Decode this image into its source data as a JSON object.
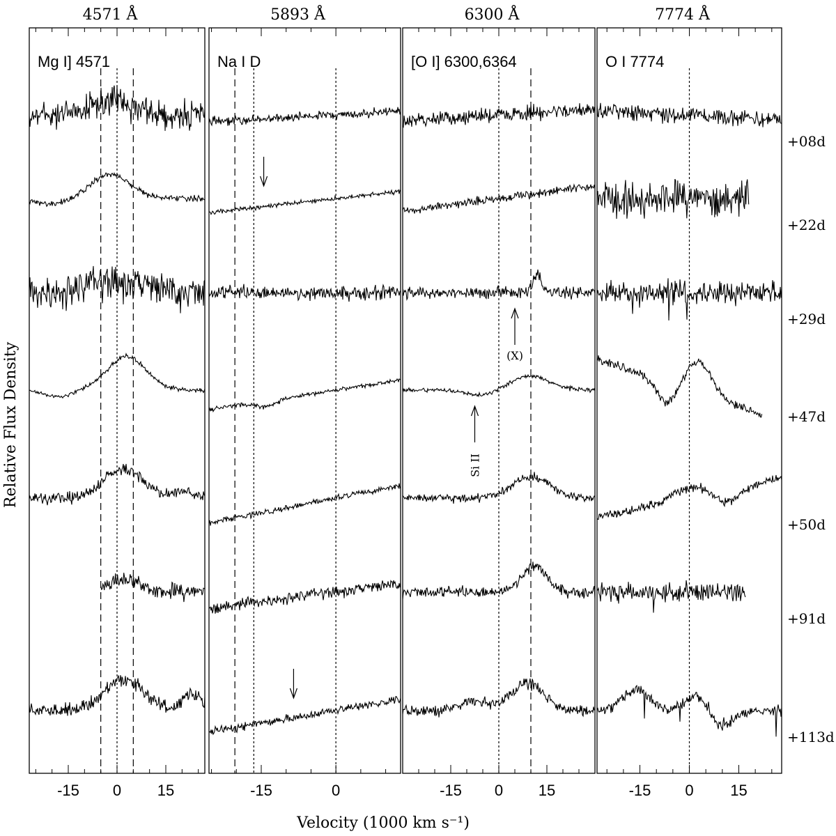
{
  "chart_data": {
    "type": "line",
    "xlabel": "Velocity (1000 km s⁻¹)",
    "ylabel": "Relative Flux Density",
    "panels": [
      {
        "top_label": "4571 Å",
        "title": "Mg I] 4571",
        "xlim": [
          -27,
          27
        ],
        "ticks": [
          -15,
          0,
          15
        ],
        "tick_labels": [
          "-15",
          "0",
          "15"
        ],
        "dotted_lines": [
          0
        ],
        "dashed_lines": [
          -5,
          5
        ]
      },
      {
        "top_label": "5893 Å",
        "title": "Na I D",
        "xlim": [
          -25.5,
          13
        ],
        "ticks": [
          -15,
          0
        ],
        "tick_labels": [
          "-15",
          "0"
        ],
        "dotted_lines": [
          -16.5,
          0
        ],
        "dashed_lines": [
          -20.3
        ]
      },
      {
        "top_label": "6300 Å",
        "title": "[O I] 6300,6364",
        "xlim": [
          -30,
          30
        ],
        "ticks": [
          -15,
          0,
          15
        ],
        "tick_labels": [
          "-15",
          "0",
          "15"
        ],
        "dotted_lines": [
          0
        ],
        "dashed_lines": [
          10
        ]
      },
      {
        "top_label": "7774 Å",
        "title": "O I 7774",
        "xlim": [
          -28,
          28
        ],
        "ticks": [
          -15,
          0,
          15
        ],
        "tick_labels": [
          "-15",
          "0",
          "15"
        ],
        "dotted_lines": [
          0
        ],
        "dashed_lines": []
      }
    ],
    "epochs": [
      "+08d",
      "+22d",
      "+29d",
      "+47d",
      "+50d",
      "+91d",
      "+113d"
    ],
    "annotations": [
      {
        "panel": 1,
        "text": "",
        "epoch": "+22d",
        "x": -14.5,
        "type": "down-arrow"
      },
      {
        "panel": 1,
        "text": "",
        "epoch": "+113d",
        "x": -8.5,
        "type": "down-arrow"
      },
      {
        "panel": 2,
        "text": "(X)",
        "epoch": "+29d",
        "x": 5,
        "type": "up-arrow"
      },
      {
        "panel": 2,
        "text": "Si II",
        "epoch": "+47d",
        "x": -7.5,
        "type": "up-arrow"
      }
    ],
    "series": [
      {
        "epoch": "+08d",
        "style": "heavy noise, nearly flat continuum; narrow spike near [O I] +12; strong spikes in O I panel near +14"
      },
      {
        "epoch": "+22d",
        "style": "Mg I] broad emission near 0; O I panel noisy with strong spikes near +13..+17"
      },
      {
        "epoch": "+29d",
        "style": "noisy; narrow [O I] peak near +12; O I panel absorption spikes near +12"
      },
      {
        "epoch": "+47d",
        "style": "broad Mg I] emission peaking near +3; [O I] emission near +10; strong O I emission near +3"
      },
      {
        "epoch": "+50d",
        "style": "broad Mg I] emission; [O I] emission near +10; O I dip near +10"
      },
      {
        "epoch": "+91d",
        "style": "Mg I] starts at -5; [O I] emission near +12; O I panel with strong spikes"
      },
      {
        "epoch": "+113d",
        "style": "broad Mg I] emission; [O I] emission near +10; O I emission with strong absorption spikes"
      }
    ]
  }
}
